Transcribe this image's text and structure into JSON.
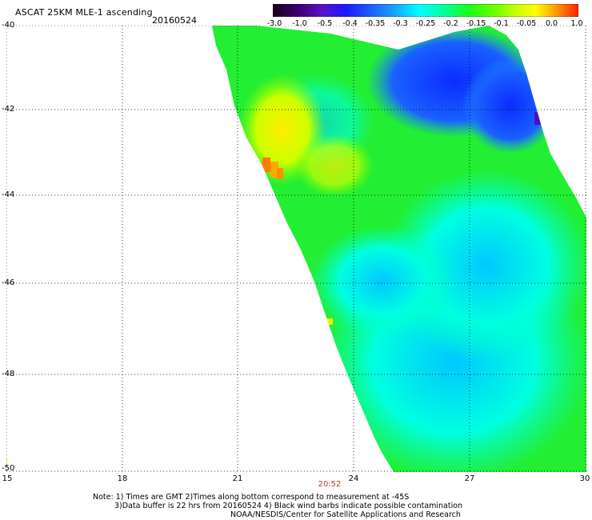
{
  "header": {
    "title": "ASCAT 25KM MLE-1 ascending",
    "date": "20160524"
  },
  "colorbar": {
    "tick_labels": [
      "-3.0",
      "-1.0",
      "-0.5",
      "-0.4",
      "-0.35",
      "-0.3",
      "-0.25",
      "-0.2",
      "-0.15",
      "-0.1",
      "-0.05",
      "0.0",
      "1.0"
    ],
    "colors": [
      "#2a0033",
      "#5b0cb0",
      "#1a1aff",
      "#1f5cff",
      "#1aa3ff",
      "#00e5ff",
      "#00ffcc",
      "#00ff66",
      "#33ff00",
      "#aaff00",
      "#f7ff00",
      "#ffb300",
      "#ff2200"
    ]
  },
  "axes": {
    "lat_labels": [
      "-40",
      "-42",
      "-44",
      "-46",
      "-48",
      "-50"
    ],
    "lon_labels": [
      "15",
      "18",
      "21",
      "24",
      "27",
      "30"
    ]
  },
  "timestamp": "20:52",
  "notes": {
    "line1": "Note: 1) Times are GMT 2)Times along bottom correspond to measurement at -45S",
    "line2": "3)Data buffer is 22 hrs from 20160524 4) Black wind barbs indicate possible contamination",
    "line3": "NOAA/NESDIS/Center for Satellite Applications and Research"
  }
}
